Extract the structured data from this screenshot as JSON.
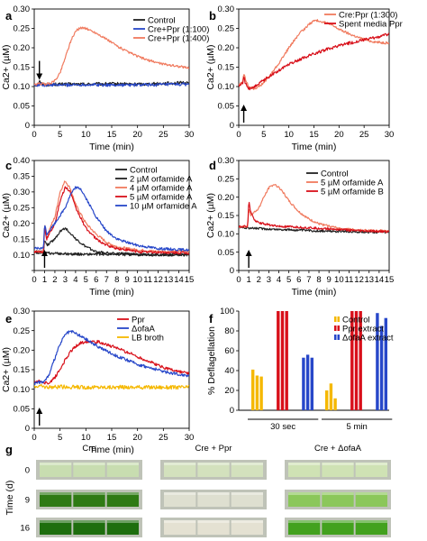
{
  "chart_data": [
    {
      "panel": "a",
      "type": "line",
      "xlabel": "Time (min)",
      "ylabel": "Ca2+ (µM)",
      "xlim": [
        0,
        30
      ],
      "ylim": [
        0,
        0.3
      ],
      "xticks": [
        0,
        5,
        10,
        15,
        20,
        25,
        30
      ],
      "yticks": [
        0,
        0.05,
        0.1,
        0.15,
        0.2,
        0.25,
        0.3
      ],
      "ytick_labels": [
        "0",
        "0.05",
        "0.10",
        "0.15",
        "0.20",
        "0.25",
        "0.30"
      ],
      "legend": "top-right",
      "arrow_x": 1,
      "series": [
        {
          "name": "Control",
          "color": "#222222",
          "noise": 0.004,
          "x": [
            0,
            0.8,
            1,
            1.3,
            2,
            5,
            10,
            15,
            20,
            25,
            30
          ],
          "y": [
            0.104,
            0.106,
            0.118,
            0.108,
            0.105,
            0.106,
            0.106,
            0.107,
            0.106,
            0.108,
            0.11
          ]
        },
        {
          "name": "Cre+Ppr (1:100)",
          "color": "#2747c9",
          "noise": 0.004,
          "x": [
            0,
            1,
            2,
            5,
            10,
            15,
            20,
            25,
            30
          ],
          "y": [
            0.102,
            0.106,
            0.104,
            0.104,
            0.105,
            0.104,
            0.104,
            0.105,
            0.106
          ]
        },
        {
          "name": "Cre+Ppr (1:400)",
          "color": "#f07a5e",
          "noise": 0.003,
          "x": [
            0,
            1,
            2,
            3,
            4,
            5,
            6,
            7,
            8,
            9,
            10,
            12,
            14,
            16,
            18,
            20,
            22,
            25,
            28,
            30
          ],
          "y": [
            0.104,
            0.108,
            0.106,
            0.108,
            0.115,
            0.135,
            0.175,
            0.215,
            0.243,
            0.252,
            0.25,
            0.238,
            0.222,
            0.205,
            0.19,
            0.178,
            0.168,
            0.158,
            0.152,
            0.148
          ]
        }
      ]
    },
    {
      "panel": "b",
      "type": "line",
      "xlabel": "Time (min)",
      "ylabel": "Ca2+ (µM)",
      "xlim": [
        0,
        30
      ],
      "ylim": [
        0,
        0.3
      ],
      "xticks": [
        0,
        5,
        10,
        15,
        20,
        25,
        30
      ],
      "yticks": [
        0,
        0.05,
        0.1,
        0.15,
        0.2,
        0.25,
        0.3
      ],
      "ytick_labels": [
        "0",
        "0.05",
        "0.10",
        "0.15",
        "0.20",
        "0.25",
        "0.30"
      ],
      "legend": "top-right",
      "arrow_x": 1,
      "series": [
        {
          "name": "Cre:Ppr (1:300)",
          "color": "#f07a5e",
          "noise": 0.003,
          "x": [
            0,
            0.8,
            1,
            1.3,
            2,
            3,
            4,
            5,
            6,
            8,
            10,
            12,
            14,
            15,
            16,
            18,
            20,
            22,
            24,
            26,
            28,
            30
          ],
          "y": [
            0.105,
            0.11,
            0.135,
            0.12,
            0.1,
            0.095,
            0.1,
            0.11,
            0.125,
            0.16,
            0.2,
            0.235,
            0.26,
            0.27,
            0.27,
            0.262,
            0.248,
            0.236,
            0.226,
            0.218,
            0.214,
            0.212
          ]
        },
        {
          "name": "Spent media Ppr",
          "color": "#d8101a",
          "noise": 0.004,
          "x": [
            0,
            0.8,
            1,
            1.3,
            2,
            3,
            4,
            6,
            8,
            10,
            14,
            18,
            22,
            26,
            30
          ],
          "y": [
            0.1,
            0.108,
            0.125,
            0.11,
            0.095,
            0.098,
            0.108,
            0.125,
            0.142,
            0.158,
            0.18,
            0.198,
            0.212,
            0.223,
            0.235
          ]
        }
      ]
    },
    {
      "panel": "c",
      "type": "line",
      "xlabel": "Time (min)",
      "ylabel": "Ca2+ (µM)",
      "xlim": [
        0,
        15
      ],
      "ylim": [
        0.05,
        0.4
      ],
      "xticks": [
        0,
        1,
        2,
        3,
        4,
        5,
        6,
        7,
        8,
        9,
        10,
        11,
        12,
        13,
        14,
        15
      ],
      "yticks": [
        0.05,
        0.1,
        0.15,
        0.2,
        0.25,
        0.3,
        0.35,
        0.4
      ],
      "ytick_labels": [
        "",
        "0.10",
        "0.15",
        "0.20",
        "0.25",
        "0.30",
        "0.35",
        "0.40"
      ],
      "legend": "top-right",
      "arrow_x": 1,
      "series": [
        {
          "name": "Control",
          "color": "#222222",
          "noise": 0.004,
          "x": [
            0,
            1,
            2,
            4,
            6,
            8,
            10,
            12,
            15
          ],
          "y": [
            0.108,
            0.106,
            0.104,
            0.102,
            0.102,
            0.101,
            0.1,
            0.1,
            0.1
          ]
        },
        {
          "name": "2 µM orfamide A",
          "color": "#222222",
          "noise": 0.004,
          "x": [
            0,
            0.9,
            1,
            1.2,
            2,
            2.5,
            3,
            3.5,
            4,
            5,
            6,
            7,
            8,
            10,
            12,
            15
          ],
          "y": [
            0.11,
            0.11,
            0.15,
            0.13,
            0.15,
            0.175,
            0.185,
            0.17,
            0.15,
            0.125,
            0.11,
            0.106,
            0.104,
            0.102,
            0.1,
            0.1
          ]
        },
        {
          "name": "4 µM orfamide A",
          "color": "#f07a5e",
          "noise": 0.004,
          "x": [
            0,
            0.9,
            1,
            1.2,
            2,
            2.5,
            3,
            3.5,
            4,
            5,
            6,
            7,
            8,
            10,
            12,
            15
          ],
          "y": [
            0.11,
            0.11,
            0.2,
            0.16,
            0.22,
            0.3,
            0.335,
            0.31,
            0.26,
            0.2,
            0.165,
            0.14,
            0.125,
            0.115,
            0.11,
            0.11
          ]
        },
        {
          "name": "5 µM orfamide A",
          "color": "#d8101a",
          "noise": 0.004,
          "x": [
            0,
            0.9,
            1,
            1.2,
            2,
            2.5,
            3,
            3.5,
            4,
            5,
            6,
            7,
            8,
            10,
            12,
            15
          ],
          "y": [
            0.11,
            0.11,
            0.19,
            0.15,
            0.2,
            0.27,
            0.315,
            0.3,
            0.25,
            0.185,
            0.15,
            0.13,
            0.12,
            0.11,
            0.108,
            0.105
          ]
        },
        {
          "name": "10 µM orfamide A",
          "color": "#2747c9",
          "noise": 0.004,
          "x": [
            0,
            0.9,
            1,
            1.2,
            2,
            3,
            3.5,
            4,
            4.5,
            5,
            6,
            7,
            8,
            10,
            12,
            15
          ],
          "y": [
            0.12,
            0.12,
            0.2,
            0.165,
            0.2,
            0.25,
            0.29,
            0.315,
            0.31,
            0.28,
            0.22,
            0.175,
            0.15,
            0.13,
            0.12,
            0.115
          ]
        }
      ]
    },
    {
      "panel": "d",
      "type": "line",
      "xlabel": "Time (min)",
      "ylabel": "Ca2+ (µM)",
      "xlim": [
        0,
        15
      ],
      "ylim": [
        0,
        0.3
      ],
      "xticks": [
        0,
        1,
        2,
        3,
        4,
        5,
        6,
        7,
        8,
        9,
        10,
        11,
        12,
        13,
        14,
        15
      ],
      "yticks": [
        0,
        0.05,
        0.1,
        0.15,
        0.2,
        0.25,
        0.3
      ],
      "ytick_labels": [
        "0",
        "0.05",
        "0.10",
        "0.15",
        "0.20",
        "0.25",
        "0.30"
      ],
      "legend": "top-right",
      "arrow_x": 1,
      "series": [
        {
          "name": "Control",
          "color": "#222222",
          "noise": 0.003,
          "x": [
            0,
            1,
            3,
            5,
            7,
            9,
            11,
            13,
            15
          ],
          "y": [
            0.118,
            0.116,
            0.113,
            0.111,
            0.109,
            0.107,
            0.106,
            0.105,
            0.104
          ]
        },
        {
          "name": "5 µM orfamide A",
          "color": "#f07a5e",
          "noise": 0.003,
          "x": [
            0,
            0.9,
            1,
            1.2,
            2,
            2.5,
            3,
            3.5,
            4,
            4.5,
            5,
            6,
            7,
            8,
            10,
            12,
            15
          ],
          "y": [
            0.12,
            0.12,
            0.17,
            0.15,
            0.17,
            0.2,
            0.225,
            0.235,
            0.228,
            0.21,
            0.19,
            0.16,
            0.14,
            0.127,
            0.115,
            0.11,
            0.108
          ]
        },
        {
          "name": "5 µM orfamide B",
          "color": "#d8101a",
          "noise": 0.003,
          "x": [
            0,
            0.9,
            1,
            1.15,
            1.5,
            2,
            3,
            4,
            6,
            8,
            10,
            12,
            15
          ],
          "y": [
            0.12,
            0.12,
            0.19,
            0.165,
            0.14,
            0.13,
            0.125,
            0.12,
            0.118,
            0.115,
            0.112,
            0.108,
            0.106
          ]
        }
      ]
    },
    {
      "panel": "e",
      "type": "line",
      "xlabel": "Time (min)",
      "ylabel": "Ca2+ (µM)",
      "xlim": [
        0,
        30
      ],
      "ylim": [
        0,
        0.3
      ],
      "xticks": [
        0,
        5,
        10,
        15,
        20,
        25,
        30
      ],
      "yticks": [
        0,
        0.05,
        0.1,
        0.15,
        0.2,
        0.25,
        0.3
      ],
      "ytick_labels": [
        "0",
        "0.05",
        "0.10",
        "0.15",
        "0.20",
        "0.25",
        "0.30"
      ],
      "legend": "top-right",
      "arrow_x": 1,
      "series": [
        {
          "name": "Ppr",
          "color": "#d8101a",
          "noise": 0.004,
          "x": [
            0,
            1,
            2,
            3,
            4,
            5,
            6,
            7,
            8,
            9,
            10,
            11,
            12,
            14,
            16,
            18,
            20,
            22,
            24,
            26,
            28,
            30
          ],
          "y": [
            0.118,
            0.12,
            0.115,
            0.118,
            0.13,
            0.15,
            0.175,
            0.195,
            0.21,
            0.218,
            0.222,
            0.223,
            0.222,
            0.215,
            0.205,
            0.195,
            0.183,
            0.172,
            0.161,
            0.152,
            0.145,
            0.14
          ]
        },
        {
          "name": "ΔofaA",
          "color": "#2747c9",
          "noise": 0.004,
          "x": [
            0,
            1,
            2,
            3,
            4,
            5,
            6,
            7,
            8,
            10,
            12,
            14,
            16,
            18,
            20,
            22,
            24,
            26,
            28,
            30
          ],
          "y": [
            0.115,
            0.118,
            0.12,
            0.14,
            0.18,
            0.215,
            0.24,
            0.248,
            0.243,
            0.228,
            0.212,
            0.198,
            0.185,
            0.174,
            0.164,
            0.156,
            0.149,
            0.143,
            0.138,
            0.135
          ]
        },
        {
          "name": "LB broth",
          "color": "#f5b800",
          "noise": 0.005,
          "x": [
            0,
            1,
            2,
            5,
            10,
            15,
            20,
            25,
            30
          ],
          "y": [
            0.108,
            0.108,
            0.106,
            0.106,
            0.105,
            0.105,
            0.105,
            0.105,
            0.105
          ]
        }
      ]
    },
    {
      "panel": "f",
      "type": "bar",
      "ylabel": "% Deflagellation",
      "ylim": [
        0,
        100
      ],
      "yticks": [
        0,
        20,
        40,
        60,
        80,
        100
      ],
      "ytick_labels": [
        "0",
        "20",
        "40",
        "60",
        "80",
        "100"
      ],
      "legend": "top-right",
      "categories": [
        "30 sec",
        "5 min"
      ],
      "series": [
        {
          "name": "Control",
          "color": "#f5b800",
          "values": [
            [
              41,
              35,
              34
            ],
            [
              20,
              27,
              12
            ]
          ]
        },
        {
          "name": "Ppr extract",
          "color": "#d8101a",
          "values": [
            [
              100,
              100,
              100
            ],
            [
              100,
              100,
              100
            ]
          ]
        },
        {
          "name": "ΔofaA extract",
          "color": "#2747c9",
          "values": [
            [
              53,
              56,
              53
            ],
            [
              98,
              85,
              93
            ]
          ]
        }
      ]
    }
  ],
  "panels": {
    "a": "a",
    "b": "b",
    "c": "c",
    "d": "d",
    "e": "e",
    "f": "f",
    "g": "g"
  },
  "panel_g": {
    "columns": [
      "Cre",
      "Cre + Ppr",
      "Cre + ΔofaA"
    ],
    "ylabel": "Time (d)",
    "rows": [
      "0",
      "9",
      "16"
    ],
    "colors": [
      [
        "#c8ddb0",
        "#d3e1bd",
        "#cfe2b4"
      ],
      [
        "#2f7a14",
        "#dedfd0",
        "#8bc75a"
      ],
      [
        "#1e6e0e",
        "#e4e1d2",
        "#43a11e"
      ]
    ]
  }
}
